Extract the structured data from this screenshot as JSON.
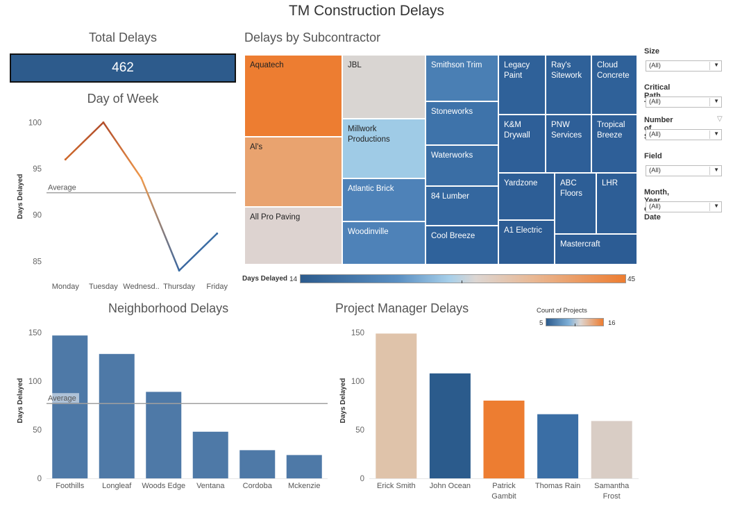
{
  "dashboard": {
    "title": "TM Construction Delays"
  },
  "total_delays": {
    "title": "Total Delays",
    "value": "462"
  },
  "treemap": {
    "title": "Delays by Subcontractor",
    "legend": {
      "label": "Days Delayed",
      "min": "14",
      "max": "45"
    },
    "cells": [
      {
        "label": "Aquatech",
        "dark": true
      },
      {
        "label": "Al's",
        "dark": true
      },
      {
        "label": "All Pro Paving",
        "dark": true
      },
      {
        "label": "JBL",
        "dark": true
      },
      {
        "label": "Millwork\nProductions",
        "dark": true
      },
      {
        "label": "Atlantic Brick",
        "dark": false
      },
      {
        "label": "Woodinville",
        "dark": false
      },
      {
        "label": "Smithson Trim",
        "dark": false
      },
      {
        "label": "Stoneworks",
        "dark": false
      },
      {
        "label": "Waterworks",
        "dark": false
      },
      {
        "label": "84 Lumber",
        "dark": false
      },
      {
        "label": "Cool Breeze",
        "dark": false
      },
      {
        "label": "Legacy\nPaint",
        "dark": false
      },
      {
        "label": "Ray's\nSitework",
        "dark": false
      },
      {
        "label": "Cloud\nConcrete",
        "dark": false
      },
      {
        "label": "K&M\nDrywall",
        "dark": false
      },
      {
        "label": "PNW\nServices",
        "dark": false
      },
      {
        "label": "Tropical\nBreeze",
        "dark": false
      },
      {
        "label": "Yardzone",
        "dark": false
      },
      {
        "label": "ABC\nFloors",
        "dark": false
      },
      {
        "label": "LHR",
        "dark": false
      },
      {
        "label": "A1 Electric",
        "dark": false
      },
      {
        "label": "Mastercraft",
        "dark": false
      }
    ]
  },
  "filters": [
    {
      "label": "Size",
      "value": "(All)"
    },
    {
      "label": "Critical Path Task",
      "value": "(All)"
    },
    {
      "label": "Number of Stories",
      "value": "(All)"
    },
    {
      "label": "Field",
      "value": "(All)"
    },
    {
      "label": "Month, Year of Date",
      "value": "(All)"
    }
  ],
  "chart_data": [
    {
      "type": "line",
      "title": "Day of Week",
      "ylabel": "Days Delayed",
      "categories": [
        "Monday",
        "Tuesday",
        "Wednesd..",
        "Thursday",
        "Friday"
      ],
      "values": [
        96,
        100,
        94,
        84,
        88
      ],
      "ylim": [
        83,
        101
      ],
      "yticks": [
        85,
        90,
        95,
        100
      ],
      "reference_line": {
        "label": "Average",
        "value": 92.4
      }
    },
    {
      "type": "bar",
      "title": "Neighborhood Delays",
      "ylabel": "Days Delayed",
      "categories": [
        "Foothills",
        "Longleaf",
        "Woods Edge",
        "Ventana",
        "Cordoba",
        "Mckenzie"
      ],
      "values": [
        147,
        128,
        89,
        48,
        29,
        24
      ],
      "ylim": [
        0,
        160
      ],
      "yticks": [
        0,
        50,
        100,
        150
      ],
      "reference_line": {
        "label": "Average",
        "value": 77
      },
      "color": "#4e79a7"
    },
    {
      "type": "bar",
      "title": "Project Manager Delays",
      "ylabel": "Days Delayed",
      "categories": [
        "Erick Smith",
        "John Ocean",
        "Patrick\nGambit",
        "Thomas Rain",
        "Samantha\nFrost"
      ],
      "values": [
        149,
        108,
        80,
        66,
        59
      ],
      "colors": [
        "#dfc3aa",
        "#2b5b8c",
        "#ed7d31",
        "#3a6ea5",
        "#d9cdc5"
      ],
      "ylim": [
        0,
        160
      ],
      "yticks": [
        0,
        50,
        100,
        150
      ],
      "legend": {
        "title": "Count of Projects",
        "min": "5",
        "max": "16"
      }
    }
  ]
}
